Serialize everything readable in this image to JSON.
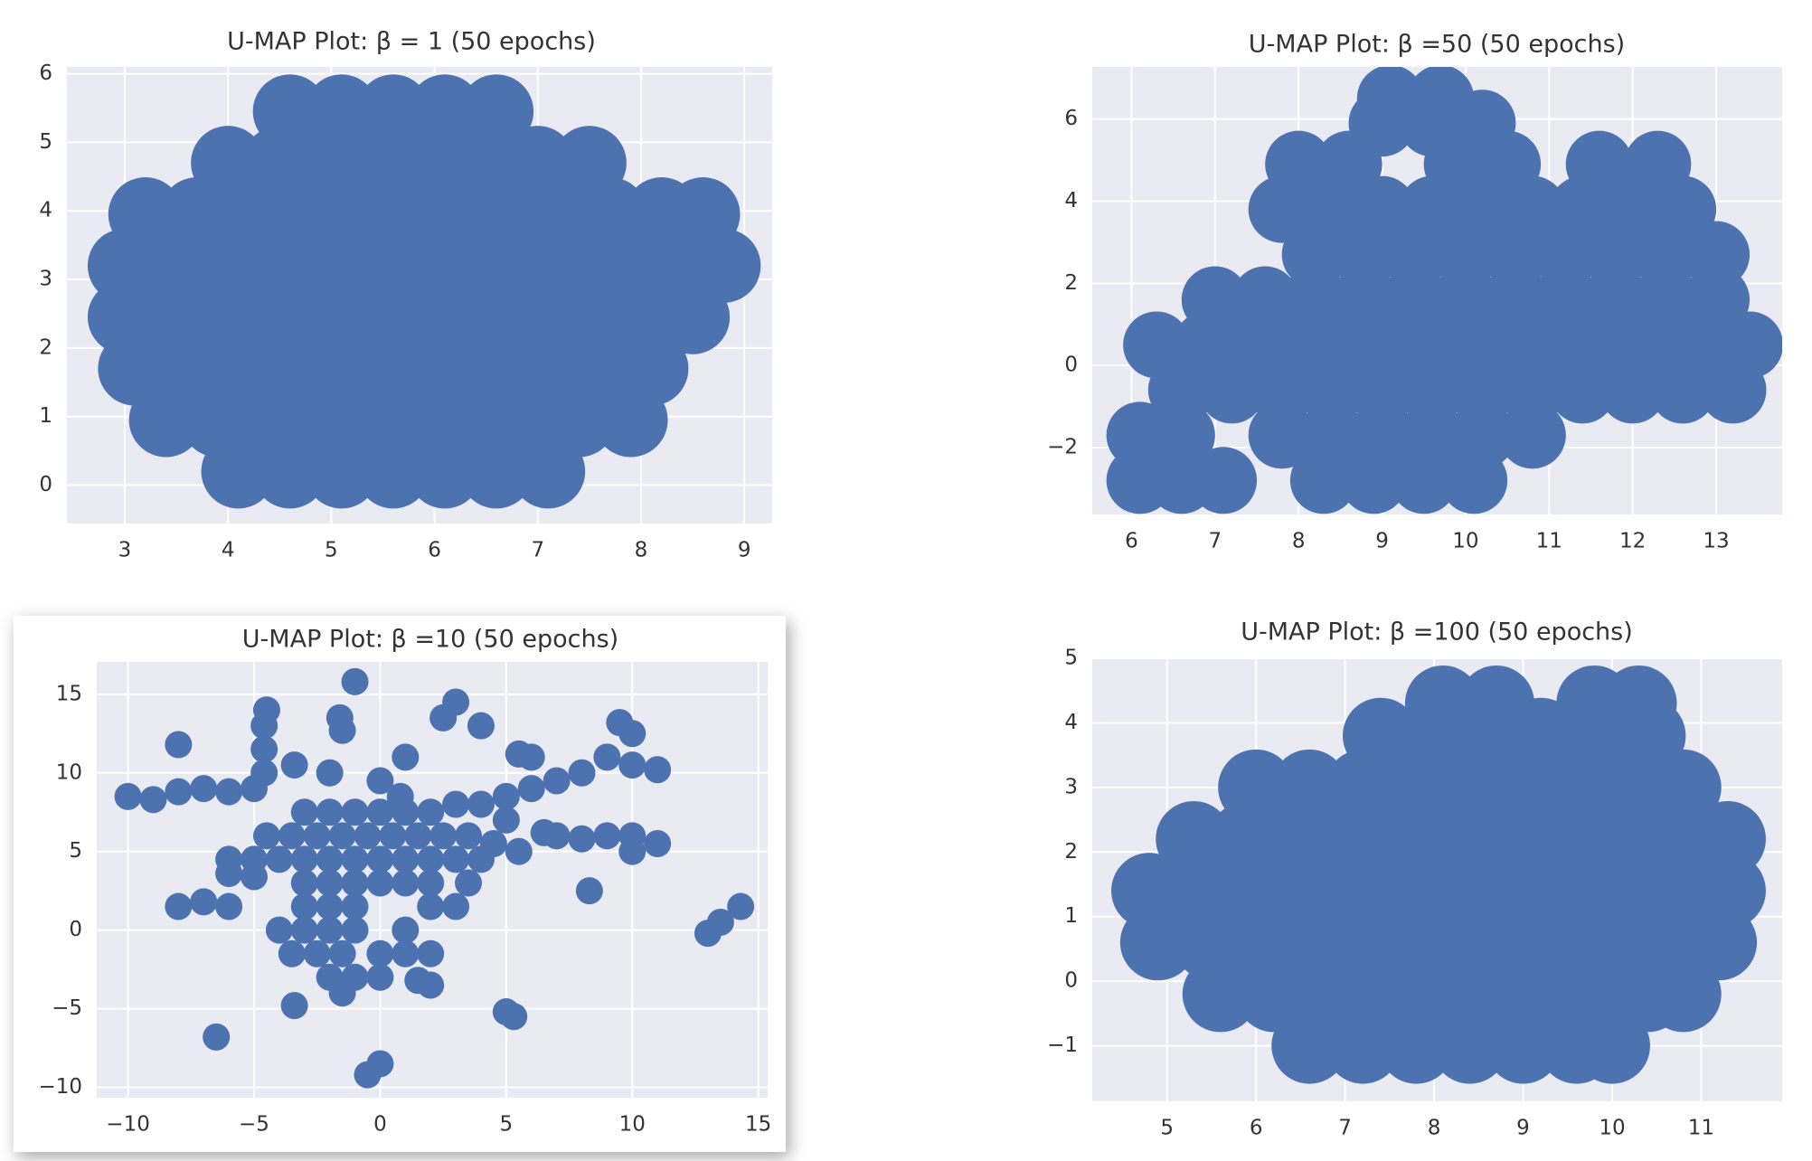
{
  "chart_data": [
    {
      "type": "scatter",
      "title": "U-MAP Plot: β = 1 (50 epochs)",
      "color": "#4c72b0",
      "grid": true,
      "xlim": [
        2.44,
        9.27
      ],
      "ylim": [
        -0.56,
        6.1
      ],
      "xticks": [
        3,
        4,
        5,
        6,
        7,
        8,
        9
      ],
      "yticks": [
        0,
        1,
        2,
        3,
        4,
        5,
        6
      ],
      "x": [
        4.1,
        4.6,
        5.1,
        5.6,
        6.1,
        6.6,
        7.1,
        3.4,
        3.9,
        4.4,
        4.9,
        5.4,
        5.9,
        6.4,
        6.9,
        7.4,
        7.9,
        3.1,
        3.6,
        4.1,
        4.6,
        5.1,
        5.6,
        6.1,
        6.6,
        7.1,
        7.6,
        8.1,
        3.0,
        3.5,
        4.0,
        4.5,
        5.0,
        5.5,
        6.0,
        6.5,
        7.0,
        7.5,
        8.0,
        8.5,
        3.0,
        3.5,
        4.0,
        4.5,
        5.0,
        5.5,
        6.0,
        6.5,
        7.0,
        7.5,
        8.0,
        8.5,
        8.8,
        3.2,
        3.7,
        4.2,
        4.7,
        5.2,
        5.7,
        6.2,
        6.7,
        7.2,
        7.7,
        8.2,
        8.6,
        4.0,
        4.5,
        5.0,
        5.5,
        6.0,
        6.5,
        7.0,
        7.5,
        4.6,
        5.1,
        5.6,
        6.1,
        6.6
      ],
      "y": [
        0.2,
        0.2,
        0.2,
        0.2,
        0.2,
        0.2,
        0.2,
        0.95,
        0.95,
        0.95,
        0.95,
        0.95,
        0.95,
        0.95,
        0.95,
        0.95,
        0.95,
        1.7,
        1.7,
        1.7,
        1.7,
        1.7,
        1.7,
        1.7,
        1.7,
        1.7,
        1.7,
        1.7,
        2.45,
        2.45,
        2.45,
        2.45,
        2.45,
        2.45,
        2.45,
        2.45,
        2.45,
        2.45,
        2.45,
        2.45,
        3.2,
        3.2,
        3.2,
        3.2,
        3.2,
        3.2,
        3.2,
        3.2,
        3.2,
        3.2,
        3.2,
        3.2,
        3.2,
        3.95,
        3.95,
        3.95,
        3.95,
        3.95,
        3.95,
        3.95,
        3.95,
        3.95,
        3.95,
        3.95,
        3.95,
        4.7,
        4.7,
        4.7,
        4.7,
        4.7,
        4.7,
        4.7,
        4.7,
        5.45,
        5.45,
        5.45,
        5.45,
        5.45
      ]
    },
    {
      "type": "scatter",
      "title": "U-MAP Plot: β =50 (50 epochs)",
      "color": "#4c72b0",
      "grid": true,
      "xlim": [
        5.53,
        13.79
      ],
      "ylim": [
        -3.63,
        7.27
      ],
      "xticks": [
        6,
        7,
        8,
        9,
        10,
        11,
        12,
        13
      ],
      "yticks": [
        {
          "value": -2,
          "label": "−2"
        },
        0,
        2,
        4,
        6
      ],
      "x": [
        6.1,
        6.6,
        7.1,
        8.3,
        8.9,
        9.5,
        10.1,
        6.1,
        6.6,
        7.8,
        8.4,
        9.0,
        9.6,
        10.2,
        10.8,
        6.6,
        7.2,
        7.8,
        8.4,
        9.0,
        9.6,
        10.2,
        10.8,
        11.4,
        12.0,
        12.6,
        13.2,
        6.3,
        6.9,
        7.5,
        8.1,
        8.7,
        9.3,
        9.9,
        10.5,
        11.1,
        11.7,
        12.3,
        12.9,
        13.4,
        7.0,
        7.6,
        8.2,
        8.8,
        9.4,
        10.0,
        10.6,
        11.2,
        11.8,
        12.4,
        13.0,
        8.2,
        8.8,
        9.4,
        10.0,
        10.6,
        11.2,
        11.8,
        12.4,
        13.0,
        7.8,
        8.4,
        9.0,
        9.6,
        10.2,
        10.8,
        11.4,
        12.0,
        12.6,
        8.0,
        8.6,
        9.9,
        10.5,
        11.6,
        12.3,
        9.0,
        9.6,
        10.2,
        9.1,
        9.7
      ],
      "y": [
        -2.8,
        -2.8,
        -2.8,
        -2.8,
        -2.8,
        -2.8,
        -2.8,
        -1.7,
        -1.7,
        -1.7,
        -1.7,
        -1.7,
        -1.7,
        -1.7,
        -1.7,
        -0.6,
        -0.6,
        -0.6,
        -0.6,
        -0.6,
        -0.6,
        -0.6,
        -0.6,
        -0.6,
        -0.6,
        -0.6,
        -0.6,
        0.5,
        0.5,
        0.5,
        0.5,
        0.5,
        0.5,
        0.5,
        0.5,
        0.5,
        0.5,
        0.5,
        0.5,
        0.5,
        1.6,
        1.6,
        1.6,
        1.6,
        1.6,
        1.6,
        1.6,
        1.6,
        1.6,
        1.6,
        1.6,
        2.7,
        2.7,
        2.7,
        2.7,
        2.7,
        2.7,
        2.7,
        2.7,
        2.7,
        3.8,
        3.8,
        3.8,
        3.8,
        3.8,
        3.8,
        3.8,
        3.8,
        3.8,
        4.9,
        4.9,
        4.9,
        4.9,
        4.9,
        4.9,
        5.9,
        5.9,
        5.9,
        6.5,
        6.5
      ]
    },
    {
      "type": "scatter",
      "title": "U-MAP Plot: β =10 (50 epochs)",
      "color": "#4c72b0",
      "grid": true,
      "xlim": [
        -11.24,
        15.37
      ],
      "ylim": [
        -10.66,
        17.06
      ],
      "xticks": [
        {
          "value": -10,
          "label": "−10"
        },
        {
          "value": -5,
          "label": "−5"
        },
        0,
        5,
        10,
        15
      ],
      "yticks": [
        {
          "value": -10,
          "label": "−10"
        },
        {
          "value": -5,
          "label": "−5"
        },
        0,
        5,
        10,
        15
      ],
      "x": [
        -10,
        -9,
        -8,
        -7,
        -6,
        -5,
        -4.6,
        -4.6,
        -4.6,
        -4.5,
        -8,
        -3.4,
        -1.6,
        -1.5,
        -1,
        -2,
        -3,
        -2,
        -1,
        0,
        1,
        2,
        -4.5,
        -3.5,
        -2.5,
        -1.5,
        -0.5,
        0.5,
        1.5,
        2.5,
        3.5,
        -6,
        -5,
        -4,
        -3,
        -2,
        -1,
        0,
        1,
        2,
        3,
        4,
        -3,
        -2,
        -1,
        0,
        1,
        2,
        3.5,
        -3,
        -2,
        -1,
        2,
        3,
        -4,
        -3,
        -2,
        -1,
        1,
        -3.5,
        -2.5,
        -1.5,
        0,
        1,
        2,
        -2,
        -1,
        0,
        -1.5,
        4,
        5,
        6,
        7,
        8,
        9,
        10,
        10,
        11,
        9.5,
        6,
        5.5,
        2.5,
        3,
        4,
        1,
        0,
        0.8,
        3,
        5,
        7,
        8,
        9,
        10,
        11,
        10,
        6.5,
        -6,
        -5,
        -8,
        -7,
        -6,
        8.3,
        2,
        1.5,
        -3.4,
        -6.5,
        5,
        5.3,
        0,
        -0.5,
        13,
        13.5,
        14.3,
        4.5,
        5.5
      ],
      "y": [
        8.5,
        8.3,
        8.8,
        9,
        8.8,
        9,
        10,
        11.5,
        13,
        14,
        11.8,
        10.5,
        13.5,
        12.7,
        15.8,
        10,
        7.5,
        7.5,
        7.5,
        7.5,
        7.5,
        7.5,
        6,
        6,
        6,
        6,
        6,
        6,
        6,
        6,
        6,
        4.5,
        4.5,
        4.5,
        4.5,
        4.5,
        4.5,
        4.5,
        4.5,
        4.5,
        4.5,
        4.5,
        3,
        3,
        3,
        3,
        3,
        3,
        3,
        1.5,
        1.5,
        1.5,
        1.5,
        1.5,
        0,
        0,
        0,
        0,
        0,
        -1.5,
        -1.5,
        -1.5,
        -1.5,
        -1.5,
        -1.5,
        -3,
        -3,
        -3,
        -4,
        8,
        8.5,
        9,
        9.5,
        10,
        11,
        12.5,
        10.5,
        10.2,
        13.2,
        11,
        11.2,
        13.5,
        14.5,
        13,
        11,
        9.5,
        8.5,
        8,
        7,
        6,
        5.8,
        6,
        6,
        5.5,
        5,
        6.2,
        3.6,
        3.4,
        1.5,
        1.8,
        1.5,
        2.5,
        -3.5,
        -3.2,
        -4.8,
        -6.8,
        -5.2,
        -5.5,
        -8.5,
        -9.2,
        -0.2,
        0.5,
        1.5,
        5.5,
        5
      ]
    },
    {
      "type": "scatter",
      "title": "U-MAP Plot: β =100 (50 epochs)",
      "color": "#4c72b0",
      "grid": true,
      "xlim": [
        4.16,
        11.91
      ],
      "ylim": [
        -1.86,
        5
      ],
      "xticks": [
        5,
        6,
        7,
        8,
        9,
        10,
        11
      ],
      "yticks": [
        {
          "value": -1,
          "label": "−1"
        },
        0,
        1,
        2,
        3,
        4,
        5
      ],
      "x": [
        6.6,
        7.2,
        7.8,
        8.4,
        9.0,
        9.6,
        10.0,
        5.6,
        6.2,
        6.8,
        7.4,
        8.0,
        8.6,
        9.2,
        9.8,
        10.4,
        10.8,
        4.9,
        5.5,
        6.1,
        6.7,
        7.3,
        7.9,
        8.5,
        9.1,
        9.7,
        10.3,
        10.9,
        11.2,
        4.8,
        5.4,
        6.0,
        6.6,
        7.2,
        7.8,
        8.4,
        9.0,
        9.6,
        10.2,
        10.8,
        11.3,
        5.3,
        5.9,
        6.5,
        7.1,
        7.7,
        8.3,
        8.9,
        9.5,
        10.1,
        10.7,
        11.3,
        6.0,
        6.6,
        7.2,
        7.8,
        8.4,
        9.0,
        9.6,
        10.2,
        10.8,
        7.4,
        8.0,
        8.6,
        9.2,
        9.8,
        10.4,
        8.1,
        8.7,
        9.8,
        10.3
      ],
      "y": [
        -1.0,
        -1.0,
        -1.0,
        -1.0,
        -1.0,
        -1.0,
        -1.0,
        -0.2,
        -0.2,
        -0.2,
        -0.2,
        -0.2,
        -0.2,
        -0.2,
        -0.2,
        -0.2,
        -0.2,
        0.6,
        0.6,
        0.6,
        0.6,
        0.6,
        0.6,
        0.6,
        0.6,
        0.6,
        0.6,
        0.6,
        0.6,
        1.4,
        1.4,
        1.4,
        1.4,
        1.4,
        1.4,
        1.4,
        1.4,
        1.4,
        1.4,
        1.4,
        1.4,
        2.2,
        2.2,
        2.2,
        2.2,
        2.2,
        2.2,
        2.2,
        2.2,
        2.2,
        2.2,
        2.2,
        3.0,
        3.0,
        3.0,
        3.0,
        3.0,
        3.0,
        3.0,
        3.0,
        3.0,
        3.8,
        3.8,
        3.8,
        3.8,
        3.8,
        3.8,
        4.3,
        4.3,
        4.3,
        4.3
      ]
    }
  ]
}
